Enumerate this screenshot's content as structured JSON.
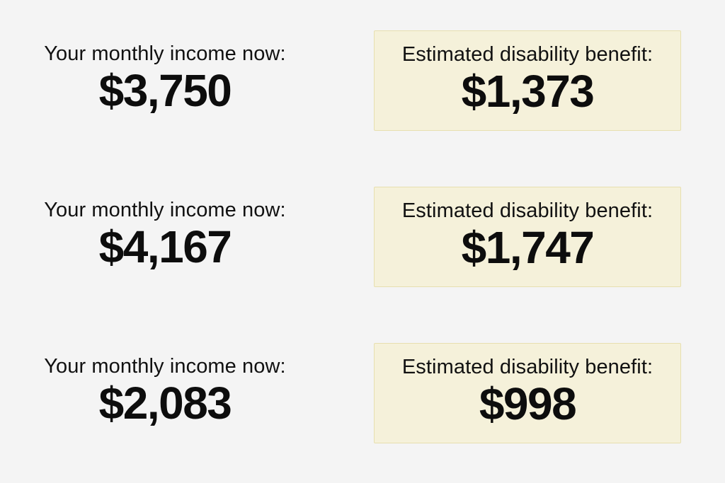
{
  "colors": {
    "page_bg": "#f4f4f4",
    "benefit_box_bg": "#f5f1da",
    "benefit_box_border": "#e7dfaf",
    "text": "#111111"
  },
  "rows": [
    {
      "income_label": "Your monthly income now:",
      "income_value": "$3,750",
      "benefit_label": "Estimated disability benefit:",
      "benefit_value": "$1,373"
    },
    {
      "income_label": "Your monthly income now:",
      "income_value": "$4,167",
      "benefit_label": "Estimated disability benefit:",
      "benefit_value": "$1,747"
    },
    {
      "income_label": "Your monthly income now:",
      "income_value": "$2,083",
      "benefit_label": "Estimated disability benefit:",
      "benefit_value": "$998"
    }
  ],
  "chart_data": {
    "type": "table",
    "columns": [
      "Your monthly income now:",
      "Estimated disability benefit:"
    ],
    "rows": [
      [
        "$3,750",
        "$1,373"
      ],
      [
        "$4,167",
        "$1,747"
      ],
      [
        "$2,083",
        "$998"
      ]
    ],
    "title": "",
    "notes": "Three example scenarios pairing current monthly income with estimated disability benefit; benefit shown in highlighted cream box"
  }
}
